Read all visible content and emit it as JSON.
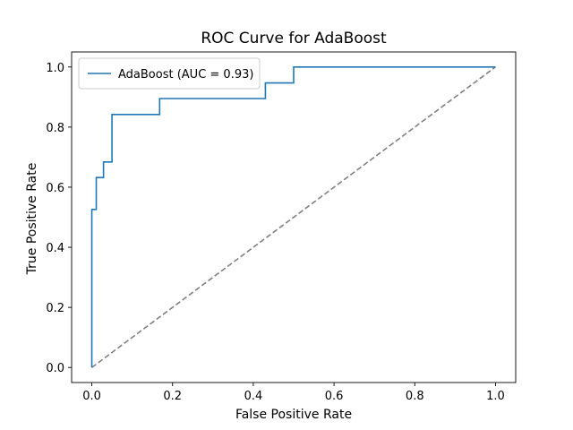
{
  "chart_data": {
    "type": "line",
    "title": "ROC Curve for AdaBoost",
    "xlabel": "False Positive Rate",
    "ylabel": "True Positive Rate",
    "xlim": [
      -0.05,
      1.05
    ],
    "ylim": [
      -0.05,
      1.05
    ],
    "xticks": [
      0.0,
      0.2,
      0.4,
      0.6,
      0.8,
      1.0
    ],
    "yticks": [
      0.0,
      0.2,
      0.4,
      0.6,
      0.8,
      1.0
    ],
    "xtick_labels": [
      "0.0",
      "0.2",
      "0.4",
      "0.6",
      "0.8",
      "1.0"
    ],
    "ytick_labels": [
      "0.0",
      "0.2",
      "0.4",
      "0.6",
      "0.8",
      "1.0"
    ],
    "grid": false,
    "legend_position": "top-left",
    "series": [
      {
        "name": "AdaBoost (AUC = 0.93)",
        "style": "solid",
        "color": "#1f77b4",
        "x": [
          0.0,
          0.0,
          0.0,
          0.011,
          0.011,
          0.029,
          0.029,
          0.05,
          0.05,
          0.168,
          0.168,
          0.43,
          0.43,
          0.5,
          0.5,
          1.0
        ],
        "y": [
          0.0,
          0.0,
          0.526,
          0.526,
          0.632,
          0.632,
          0.684,
          0.684,
          0.842,
          0.842,
          0.895,
          0.895,
          0.947,
          0.947,
          1.0,
          1.0
        ]
      },
      {
        "name": "",
        "style": "dashed",
        "color": "#808080",
        "x": [
          0.0,
          1.0
        ],
        "y": [
          0.0,
          1.0
        ]
      }
    ]
  }
}
